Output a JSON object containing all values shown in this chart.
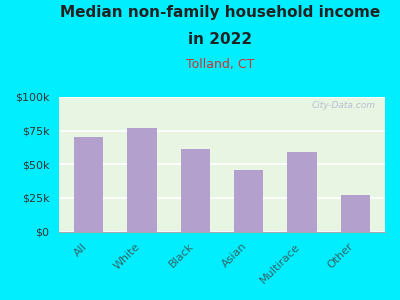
{
  "title_line1": "Median non-family household income",
  "title_line2": "in 2022",
  "subtitle": "Tolland, CT",
  "categories": [
    "All",
    "White",
    "Black",
    "Asian",
    "Multirace",
    "Other"
  ],
  "values": [
    70000,
    77000,
    61000,
    46000,
    59000,
    27000
  ],
  "bar_color": "#b3a0cc",
  "background_outer": "#00eeff",
  "background_plot": "#e8f5e2",
  "title_color": "#222222",
  "subtitle_color": "#cc3333",
  "ytick_label_color": "#333333",
  "xtick_label_color": "#336666",
  "ylim": [
    0,
    100000
  ],
  "yticks": [
    0,
    25000,
    50000,
    75000,
    100000
  ],
  "ytick_labels": [
    "$0",
    "$25k",
    "$50k",
    "$75k",
    "$100k"
  ],
  "watermark": "City-Data.com",
  "title_fontsize": 11,
  "subtitle_fontsize": 9,
  "ytick_fontsize": 8,
  "xtick_fontsize": 8
}
